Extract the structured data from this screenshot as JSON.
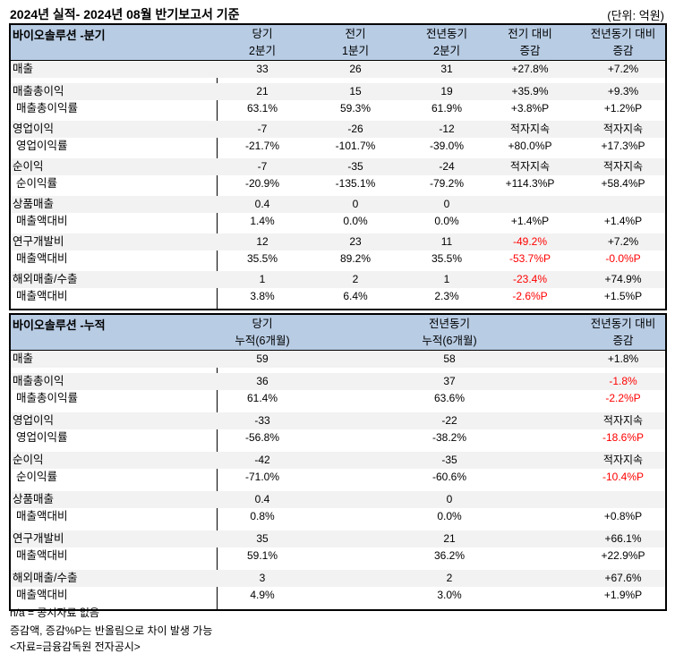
{
  "title": "2024년 실적- 2024년 08월 반기보고서 기준",
  "unit": "(단위: 억원)",
  "colors": {
    "header_bg": "#b8cce4",
    "row_bg": "#f2f2f2",
    "negative": "#ff0000"
  },
  "quarter": {
    "section": "바이오솔루션 -분기",
    "headers": [
      [
        "당기",
        "2분기"
      ],
      [
        "전기",
        "1분기"
      ],
      [
        "전년동기",
        "2분기"
      ],
      [
        "전기 대비",
        "증감"
      ],
      [
        "전년동기 대비",
        "증감"
      ]
    ],
    "groups": [
      {
        "label": "매출",
        "values": [
          "33",
          "26",
          "31",
          "+27.8%",
          "+7.2%"
        ]
      },
      {
        "label": "매출총이익",
        "values": [
          "21",
          "15",
          "19",
          "+35.9%",
          "+9.3%"
        ],
        "sub": {
          "label": "매출총이익률",
          "values": [
            "63.1%",
            "59.3%",
            "61.9%",
            "+3.8%P",
            "+1.2%P"
          ]
        }
      },
      {
        "label": "영업이익",
        "values": [
          "-7",
          "-26",
          "-12",
          "적자지속",
          "적자지속"
        ],
        "sub": {
          "label": "영업이익률",
          "values": [
            "-21.7%",
            "-101.7%",
            "-39.0%",
            "+80.0%P",
            "+17.3%P"
          ]
        }
      },
      {
        "label": "순이익",
        "values": [
          "-7",
          "-35",
          "-24",
          "적자지속",
          "적자지속"
        ],
        "sub": {
          "label": "순이익률",
          "values": [
            "-20.9%",
            "-135.1%",
            "-79.2%",
            "+114.3%P",
            "+58.4%P"
          ]
        }
      },
      {
        "label": "상품매출",
        "values": [
          "0.4",
          "0",
          "0",
          "",
          ""
        ],
        "sub": {
          "label": "매출액대비",
          "values": [
            "1.4%",
            "0.0%",
            "0.0%",
            "+1.4%P",
            "+1.4%P"
          ]
        }
      },
      {
        "label": "연구개발비",
        "values": [
          "12",
          "23",
          "11",
          "-49.2%",
          "+7.2%"
        ],
        "red": [
          3
        ],
        "sub": {
          "label": "매출액대비",
          "values": [
            "35.5%",
            "89.2%",
            "35.5%",
            "-53.7%P",
            "-0.0%P"
          ],
          "red": [
            3,
            4
          ]
        }
      },
      {
        "label": "해외매출/수출",
        "values": [
          "1",
          "2",
          "1",
          "-23.4%",
          "+74.9%"
        ],
        "red": [
          3
        ],
        "sub": {
          "label": "매출액대비",
          "values": [
            "3.8%",
            "6.4%",
            "2.3%",
            "-2.6%P",
            "+1.5%P"
          ],
          "red": [
            3
          ]
        }
      }
    ]
  },
  "cumulative": {
    "section": "바이오솔루션 -누적",
    "headers": [
      [
        "당기",
        "누적(6개월)"
      ],
      [
        "전년동기",
        "누적(6개월)"
      ],
      [
        "전년동기 대비",
        "증감"
      ]
    ],
    "groups": [
      {
        "label": "매출",
        "values": [
          "59",
          "58",
          "+1.8%"
        ]
      },
      {
        "label": "매출총이익",
        "values": [
          "36",
          "37",
          "-1.8%"
        ],
        "red": [
          2
        ],
        "sub": {
          "label": "매출총이익률",
          "values": [
            "61.4%",
            "63.6%",
            "-2.2%P"
          ],
          "red": [
            2
          ]
        }
      },
      {
        "label": "영업이익",
        "values": [
          "-33",
          "-22",
          "적자지속"
        ],
        "sub": {
          "label": "영업이익률",
          "values": [
            "-56.8%",
            "-38.2%",
            "-18.6%P"
          ],
          "red": [
            2
          ]
        }
      },
      {
        "label": "순이익",
        "values": [
          "-42",
          "-35",
          "적자지속"
        ],
        "sub": {
          "label": "순이익률",
          "values": [
            "-71.0%",
            "-60.6%",
            "-10.4%P"
          ],
          "red": [
            2
          ]
        }
      },
      {
        "label": "상품매출",
        "values": [
          "0.4",
          "0",
          ""
        ],
        "sub": {
          "label": "매출액대비",
          "values": [
            "0.8%",
            "0.0%",
            "+0.8%P"
          ]
        }
      },
      {
        "label": "연구개발비",
        "values": [
          "35",
          "21",
          "+66.1%"
        ],
        "sub": {
          "label": "매출액대비",
          "values": [
            "59.1%",
            "36.2%",
            "+22.9%P"
          ]
        }
      },
      {
        "label": "해외매출/수출",
        "values": [
          "3",
          "2",
          "+67.6%"
        ],
        "sub": {
          "label": "매출액대비",
          "values": [
            "4.9%",
            "3.0%",
            "+1.9%P"
          ]
        }
      }
    ]
  },
  "footnotes": [
    "n/a = 공시자료 없음",
    "증감액, 증감%P는 반올림으로 차이 발생 가능",
    "<자료=금융감독원 전자공시>"
  ]
}
